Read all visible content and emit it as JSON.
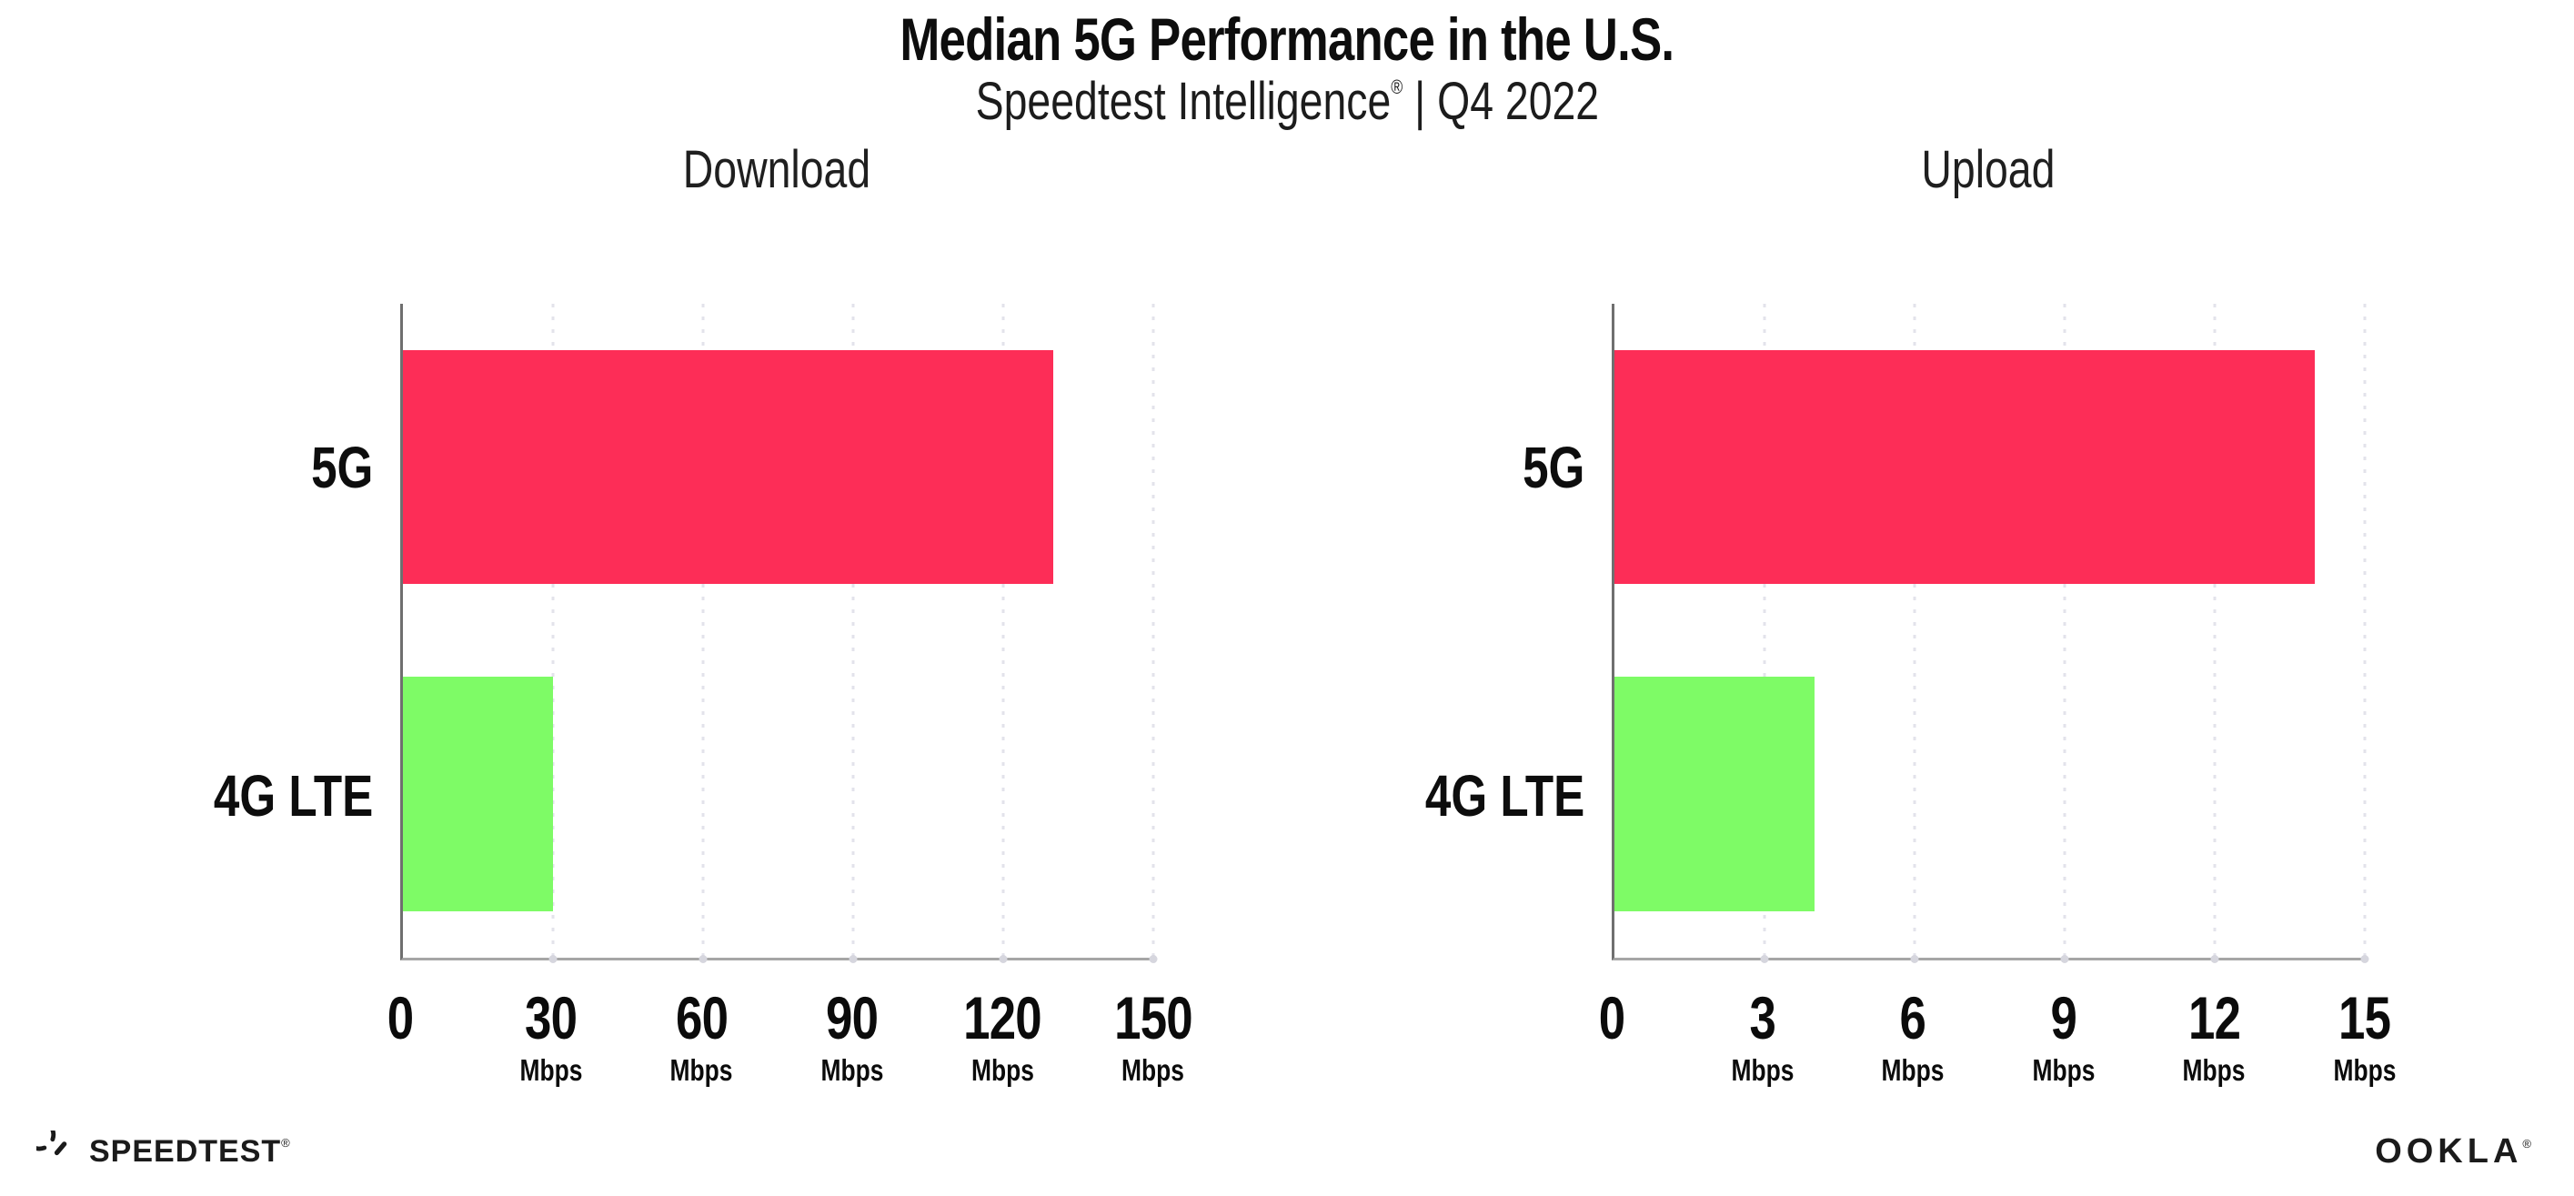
{
  "header": {
    "title": "Median 5G Performance in the U.S.",
    "subtitle_brand": "Speedtest Intelligence",
    "subtitle_reg": "®",
    "subtitle_rest": "| Q4 2022"
  },
  "chart_data": [
    {
      "type": "bar",
      "orientation": "horizontal",
      "title": "Download",
      "categories": [
        "5G",
        "4G LTE"
      ],
      "values": [
        130,
        30
      ],
      "value_unit": "Mbps",
      "xlim": [
        0,
        150
      ],
      "xticks": [
        0,
        30,
        60,
        90,
        120,
        150
      ],
      "xtick_unit": "Mbps",
      "grid": "vertical-dotted",
      "legend": "none",
      "bar_colors": [
        "#FD2D57",
        "#7EFB66"
      ]
    },
    {
      "type": "bar",
      "orientation": "horizontal",
      "title": "Upload",
      "categories": [
        "5G",
        "4G LTE"
      ],
      "values": [
        14,
        4
      ],
      "value_unit": "Mbps",
      "xlim": [
        0,
        15
      ],
      "xticks": [
        0,
        3,
        6,
        9,
        12,
        15
      ],
      "xtick_unit": "Mbps",
      "grid": "vertical-dotted",
      "legend": "none",
      "bar_colors": [
        "#FD2D57",
        "#7EFB66"
      ]
    }
  ],
  "colors": {
    "bar_5g": "#FD2D57",
    "bar_4g_lte": "#7EFB66",
    "axis_left": "#6F6F6F",
    "axis_bottom": "#A6A6A6",
    "gridline_dots": "#E3E3EB",
    "axis_tick_dots": "#D6D6DE",
    "text": "#111111",
    "background": "#FFFFFF"
  },
  "footer": {
    "speedtest_label": "SPEEDTEST",
    "speedtest_reg": "®",
    "ookla_label": "OOKLA",
    "ookla_reg": "®"
  }
}
